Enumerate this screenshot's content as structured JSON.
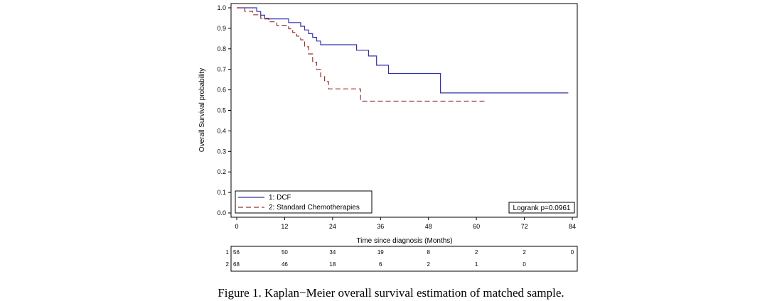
{
  "chart_data": {
    "type": "line",
    "subtype": "kaplan-meier step",
    "ylabel": "Overall Survival probability",
    "xlabel": "Time since diagnosis (Months)",
    "xlim": [
      0,
      84
    ],
    "ylim": [
      0.0,
      1.0
    ],
    "x_ticks": [
      0,
      12,
      24,
      36,
      48,
      60,
      72,
      84
    ],
    "y_ticks": [
      "0.0",
      "0.1",
      "0.2",
      "0.3",
      "0.4",
      "0.5",
      "0.6",
      "0.7",
      "0.8",
      "0.9",
      "1.0"
    ],
    "grid": false,
    "legend_position": "bottom-left",
    "annotation": "Logrank p=0.0961",
    "series": [
      {
        "name": "1: DCF",
        "color": "#3333aa",
        "style": "solid",
        "points": [
          [
            0,
            1.0
          ],
          [
            5,
            1.0
          ],
          [
            5,
            0.982
          ],
          [
            6,
            0.982
          ],
          [
            6,
            0.964
          ],
          [
            7,
            0.964
          ],
          [
            7,
            0.946
          ],
          [
            13,
            0.946
          ],
          [
            13,
            0.928
          ],
          [
            16,
            0.928
          ],
          [
            16,
            0.91
          ],
          [
            17,
            0.91
          ],
          [
            17,
            0.892
          ],
          [
            18,
            0.892
          ],
          [
            18,
            0.874
          ],
          [
            19,
            0.874
          ],
          [
            19,
            0.856
          ],
          [
            20,
            0.856
          ],
          [
            20,
            0.838
          ],
          [
            21,
            0.838
          ],
          [
            21,
            0.82
          ],
          [
            30,
            0.82
          ],
          [
            30,
            0.793
          ],
          [
            33,
            0.793
          ],
          [
            33,
            0.765
          ],
          [
            35,
            0.765
          ],
          [
            35,
            0.72
          ],
          [
            38,
            0.72
          ],
          [
            38,
            0.68
          ],
          [
            51,
            0.68
          ],
          [
            51,
            0.585
          ],
          [
            83,
            0.585
          ]
        ]
      },
      {
        "name": "2: Standard Chemotherapies",
        "color": "#993333",
        "style": "dashed",
        "points": [
          [
            0,
            1.0
          ],
          [
            2,
            1.0
          ],
          [
            2,
            0.983
          ],
          [
            4,
            0.983
          ],
          [
            4,
            0.966
          ],
          [
            6,
            0.966
          ],
          [
            6,
            0.949
          ],
          [
            8,
            0.949
          ],
          [
            8,
            0.932
          ],
          [
            10,
            0.932
          ],
          [
            10,
            0.915
          ],
          [
            13,
            0.915
          ],
          [
            13,
            0.898
          ],
          [
            14,
            0.898
          ],
          [
            14,
            0.88
          ],
          [
            15,
            0.88
          ],
          [
            15,
            0.862
          ],
          [
            16,
            0.862
          ],
          [
            16,
            0.844
          ],
          [
            17,
            0.844
          ],
          [
            17,
            0.81
          ],
          [
            18,
            0.81
          ],
          [
            18,
            0.775
          ],
          [
            19,
            0.775
          ],
          [
            19,
            0.735
          ],
          [
            20,
            0.735
          ],
          [
            20,
            0.7
          ],
          [
            21,
            0.7
          ],
          [
            21,
            0.665
          ],
          [
            22,
            0.665
          ],
          [
            22,
            0.64
          ],
          [
            23,
            0.64
          ],
          [
            23,
            0.605
          ],
          [
            31,
            0.605
          ],
          [
            31,
            0.545
          ],
          [
            62,
            0.545
          ]
        ]
      }
    ],
    "risk_table": {
      "rows": [
        {
          "label": "1",
          "values": [
            "56",
            "50",
            "34",
            "19",
            "8",
            "2",
            "2",
            "0"
          ]
        },
        {
          "label": "2",
          "values": [
            "68",
            "46",
            "18",
            "6",
            "2",
            "1",
            "0",
            ""
          ]
        }
      ]
    }
  },
  "caption": "Figure 1. Kaplan−Meier overall survival estimation of matched sample."
}
